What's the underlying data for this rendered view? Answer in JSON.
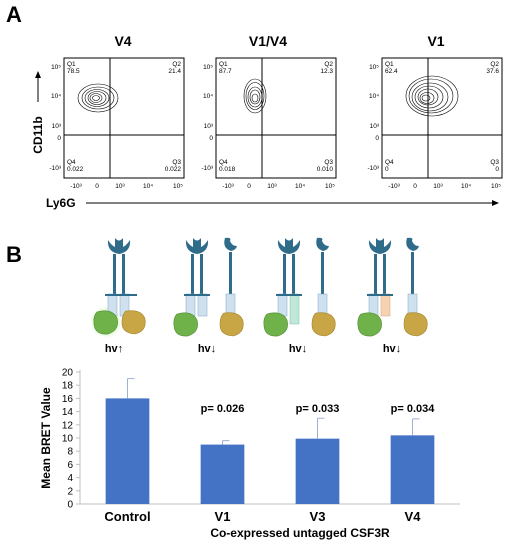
{
  "panel_a": {
    "letter": "A",
    "y_label": "CD11b",
    "x_label": "Ly6G",
    "x_ticks": [
      "-10³",
      "0",
      "10³",
      "10⁴",
      "10⁵"
    ],
    "y_ticks": [
      "10⁵",
      "10⁴",
      "10³",
      "0",
      "-10³"
    ],
    "plots": [
      {
        "title": "V4",
        "q1_name": "Q1",
        "q1_value": "78.5",
        "q2_name": "Q2",
        "q2_value": "21.4",
        "q4_name": "Q4",
        "q4_value": "0.022",
        "q3_name": "Q3",
        "q3_value": "0.022"
      },
      {
        "title": "V1/V4",
        "q1_name": "Q1",
        "q1_value": "87.7",
        "q2_name": "Q2",
        "q2_value": "12.3",
        "q4_name": "Q4",
        "q4_value": "0.018",
        "q3_name": "Q3",
        "q3_value": "0.010"
      },
      {
        "title": "V1",
        "q1_name": "Q1",
        "q1_value": "62.4",
        "q2_name": "Q2",
        "q2_value": "37.6",
        "q4_name": "Q4",
        "q4_value": "0",
        "q3_name": "Q3",
        "q3_value": "0"
      }
    ]
  },
  "panel_b": {
    "letter": "B",
    "light_labels": [
      "hv↑",
      "hv↓",
      "hv↓",
      "hv↓"
    ],
    "chart_data": {
      "type": "bar",
      "categories": [
        "Control",
        "V1",
        "V3",
        "V4"
      ],
      "values": [
        16.0,
        9.0,
        9.9,
        10.4
      ],
      "errors": [
        3.0,
        0.6,
        3.1,
        2.5
      ],
      "p_values": [
        "",
        "p= 0.026",
        "p= 0.033",
        "p= 0.034"
      ],
      "xlabel": "Co-expressed untagged CSF3R",
      "ylabel": "Mean BRET Value",
      "ylim": [
        0,
        20
      ],
      "yticks": [
        0,
        2,
        4,
        6,
        8,
        10,
        12,
        14,
        16,
        18,
        20
      ],
      "bar_color": "#4472C4",
      "error_color": "#9DB0D6"
    }
  }
}
